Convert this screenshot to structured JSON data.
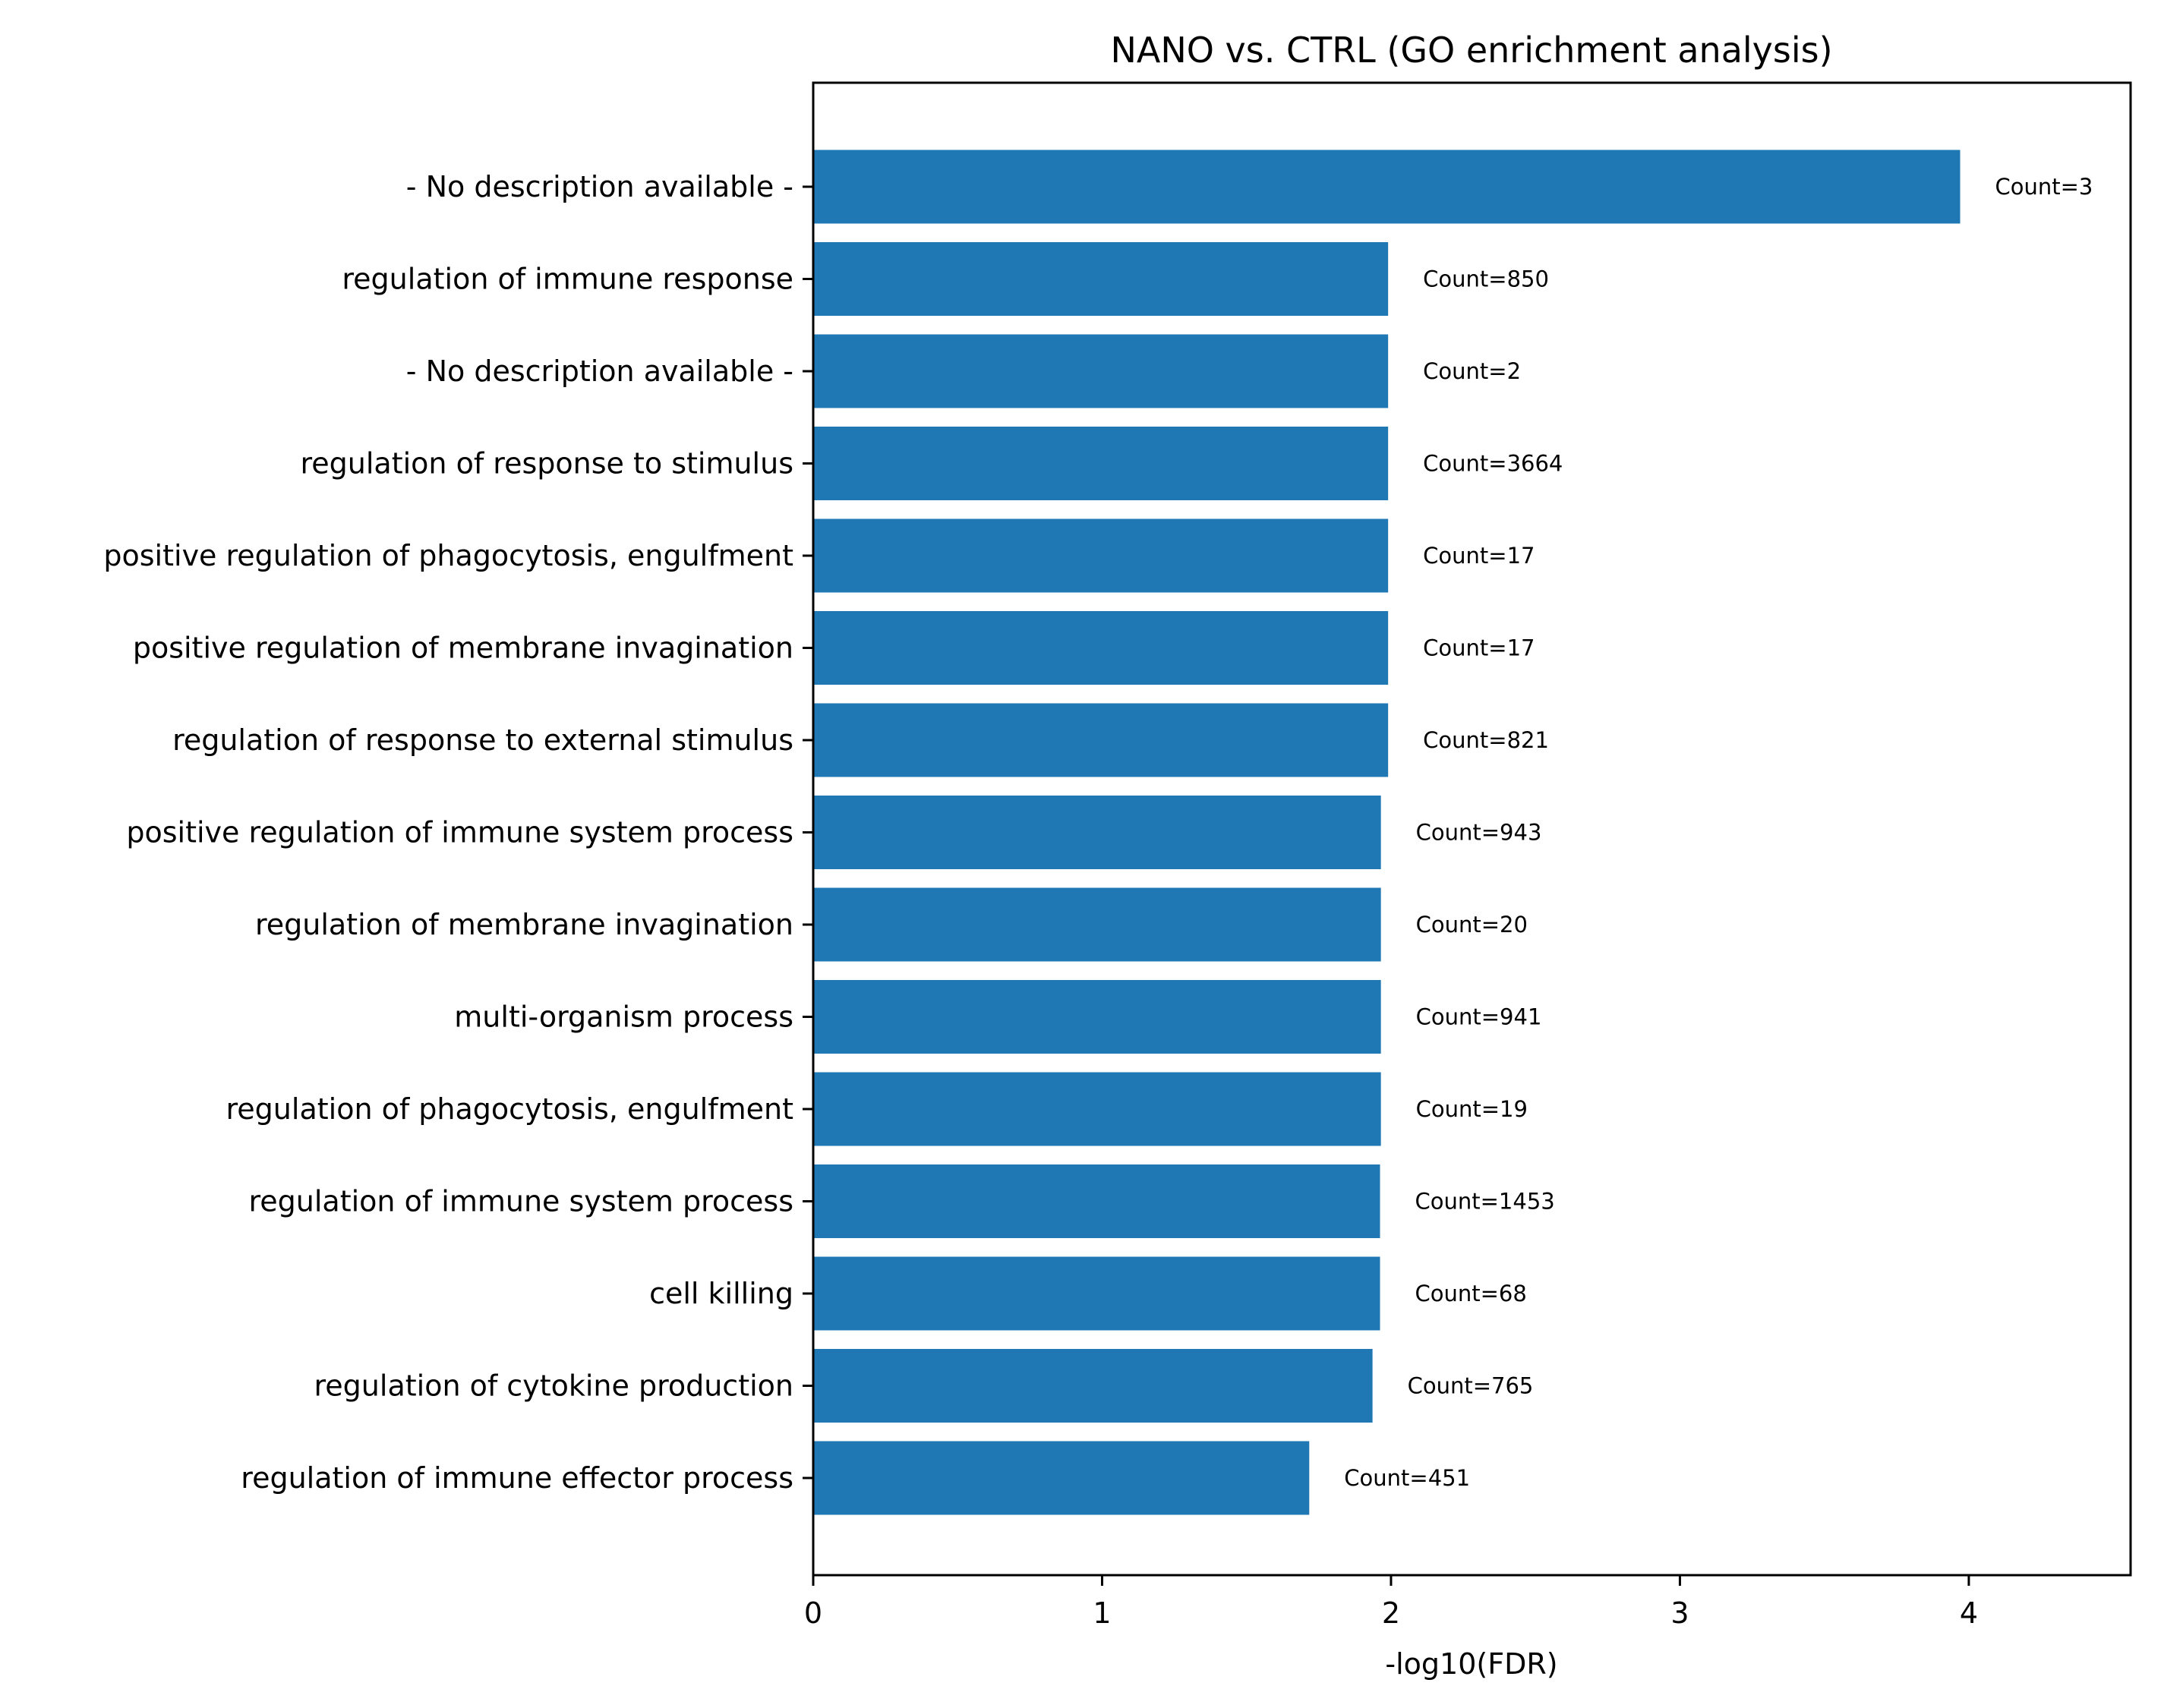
{
  "chart_data": {
    "type": "bar",
    "orientation": "horizontal",
    "title": "NANO vs. CTRL (GO enrichment analysis)",
    "xlabel": "-log10(FDR)",
    "ylabel": "",
    "xlim": [
      0,
      4.56
    ],
    "xticks": [
      0,
      1,
      2,
      3,
      4
    ],
    "xtick_labels": [
      "0",
      "1",
      "2",
      "3",
      "4"
    ],
    "grid": false,
    "legend": null,
    "bar_color": "#1f77b4",
    "categories": [
      "- No description available -",
      "regulation of immune response",
      "- No description available -",
      "regulation of response to stimulus",
      "positive regulation of phagocytosis, engulfment",
      "positive regulation of membrane invagination",
      "regulation of response to external stimulus",
      "positive regulation of immune system process",
      "regulation of membrane invagination",
      "multi-organism process",
      "regulation of phagocytosis, engulfment",
      "regulation of immune system process",
      "cell killing",
      "regulation of cytokine production",
      "regulation of immune effector process"
    ],
    "values": [
      3.97,
      1.99,
      1.99,
      1.99,
      1.99,
      1.99,
      1.99,
      1.965,
      1.965,
      1.965,
      1.965,
      1.962,
      1.962,
      1.936,
      1.717
    ],
    "annotations": [
      "Count=3",
      "Count=850",
      "Count=2",
      "Count=3664",
      "Count=17",
      "Count=17",
      "Count=821",
      "Count=943",
      "Count=20",
      "Count=941",
      "Count=19",
      "Count=1453",
      "Count=68",
      "Count=765",
      "Count=451"
    ]
  }
}
